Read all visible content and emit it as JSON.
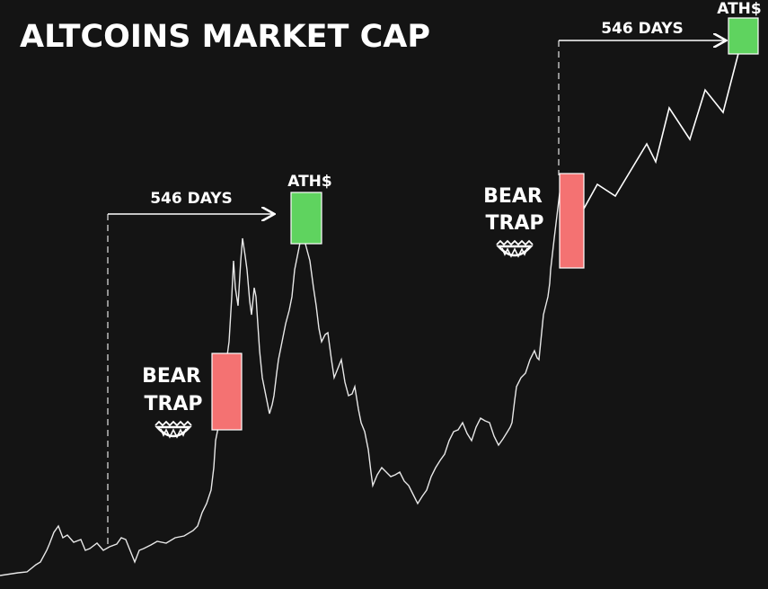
{
  "chart_data": {
    "type": "annotated-price",
    "title": "ALTCOINS MARKET CAP",
    "cycles": [
      {
        "duration_label": "546 DAYS",
        "peak_label": "ATH$",
        "trap_label": [
          "BEAR",
          "TRAP"
        ]
      },
      {
        "duration_label": "546 DAYS",
        "peak_label": "ATH$",
        "trap_label": [
          "BEAR",
          "TRAP"
        ]
      }
    ]
  }
}
